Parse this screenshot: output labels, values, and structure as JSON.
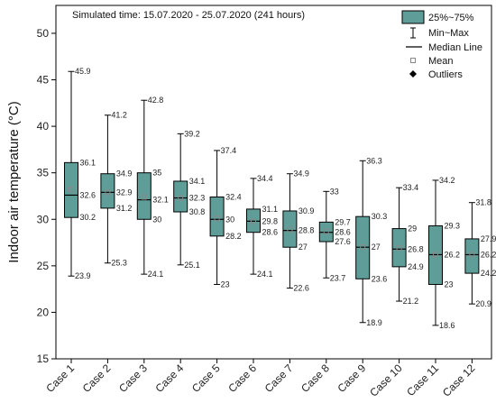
{
  "chart_data": {
    "type": "box",
    "annotation": "Simulated time: 15.07.2020 - 25.07.2020 (241 hours)",
    "ylabel": "Indoor air temperature (°C)",
    "xlabel": "",
    "ylim": [
      15,
      53
    ],
    "yticks": [
      15,
      20,
      25,
      30,
      35,
      40,
      45,
      50
    ],
    "grid": false,
    "legend_position": "top-right",
    "legend": {
      "box": "25%~75%",
      "whisker": "Min~Max",
      "median": "Median Line",
      "mean": "Mean",
      "outliers": "Outliers"
    },
    "box_color": "#5f9e98",
    "categories": [
      "Case 1",
      "Case 2",
      "Case 3",
      "Case 4",
      "Case 5",
      "Case 6",
      "Case 7",
      "Case 8",
      "Case 9",
      "Case 10",
      "Case 11",
      "Case 12"
    ],
    "boxes": [
      {
        "min": 23.9,
        "q1": 30.2,
        "median": 32.6,
        "q3": 36.1,
        "max": 45.9,
        "mean": 33.2,
        "labels": {
          "max": "45.9",
          "q3": "36.1",
          "median": "32.6",
          "q1": "30.2",
          "min": "23.9"
        }
      },
      {
        "min": 25.3,
        "q1": 31.2,
        "median": 32.9,
        "q3": 34.9,
        "max": 41.2,
        "mean": 32.9,
        "labels": {
          "max": "41.2",
          "q3": "34.9",
          "median": "32.9",
          "q1": "31.2",
          "min": "25.3"
        }
      },
      {
        "min": 24.1,
        "q1": 30.0,
        "median": 32.1,
        "q3": 35.0,
        "max": 42.8,
        "mean": 32.4,
        "labels": {
          "max": "42.8",
          "q3": "35",
          "median": "32.1",
          "q1": "30",
          "min": "24.1"
        }
      },
      {
        "min": 25.1,
        "q1": 30.8,
        "median": 32.3,
        "q3": 34.1,
        "max": 39.2,
        "mean": 32.3,
        "labels": {
          "max": "39.2",
          "q3": "34.1",
          "median": "32.3",
          "q1": "30.8",
          "min": "25.1"
        }
      },
      {
        "min": 23.0,
        "q1": 28.2,
        "median": 30.0,
        "q3": 32.4,
        "max": 37.4,
        "mean": 30.1,
        "labels": {
          "max": "37.4",
          "q3": "32.4",
          "median": "30",
          "q1": "28.2",
          "min": "23"
        }
      },
      {
        "min": 24.1,
        "q1": 28.6,
        "median": 29.8,
        "q3": 31.1,
        "max": 34.4,
        "mean": 29.8,
        "labels": {
          "max": "34.4",
          "q3": "31.1",
          "median": "29.8",
          "q1": "28.6",
          "min": "24.1"
        }
      },
      {
        "min": 22.6,
        "q1": 27.0,
        "median": 28.8,
        "q3": 30.9,
        "max": 34.9,
        "mean": 28.9,
        "labels": {
          "max": "34.9",
          "q3": "30.9",
          "median": "28.8",
          "q1": "27",
          "min": "22.6"
        }
      },
      {
        "min": 23.7,
        "q1": 27.6,
        "median": 28.6,
        "q3": 29.7,
        "max": 33.0,
        "mean": 28.7,
        "labels": {
          "max": "33",
          "q3": "29.7",
          "median": "28.6",
          "q1": "27.6",
          "min": "23.7"
        }
      },
      {
        "min": 18.9,
        "q1": 23.6,
        "median": 27.0,
        "q3": 30.3,
        "max": 36.3,
        "mean": 27.0,
        "labels": {
          "max": "36.3",
          "q3": "30.3",
          "median": "27",
          "q1": "23.6",
          "min": "18.9"
        }
      },
      {
        "min": 21.2,
        "q1": 24.9,
        "median": 26.8,
        "q3": 29.0,
        "max": 33.4,
        "mean": 26.9,
        "labels": {
          "max": "33.4",
          "q3": "29",
          "median": "26.8",
          "q1": "24.9",
          "min": "21.2"
        }
      },
      {
        "min": 18.6,
        "q1": 23.0,
        "median": 26.2,
        "q3": 29.3,
        "max": 34.2,
        "mean": 26.2,
        "labels": {
          "max": "34.2",
          "q3": "29.3",
          "median": "26.2",
          "q1": "23",
          "min": "18.6"
        }
      },
      {
        "min": 20.9,
        "q1": 24.2,
        "median": 26.2,
        "q3": 27.9,
        "max": 31.8,
        "mean": 26.2,
        "labels": {
          "max": "31.8",
          "q3": "27.9",
          "median": "26.2",
          "q1": "24.2",
          "min": "20.9"
        }
      }
    ]
  }
}
